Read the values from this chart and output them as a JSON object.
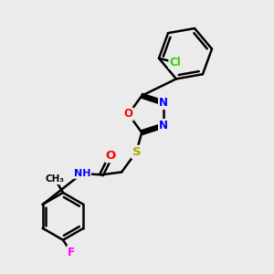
{
  "background_color": "#ebebeb",
  "line_color": "#000000",
  "bond_width": 1.8,
  "atom_colors": {
    "N": "#0000ff",
    "O": "#ff0000",
    "S": "#aaaa00",
    "Cl": "#33cc00",
    "F": "#ff00ff",
    "C": "#000000",
    "H": "#555555"
  },
  "font_size": 8.5,
  "fig_size": [
    3.0,
    3.0
  ],
  "dpi": 100
}
